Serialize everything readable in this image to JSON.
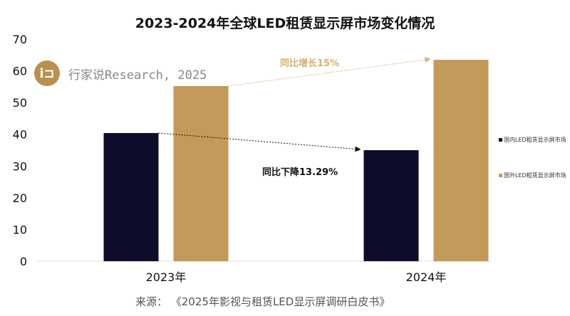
{
  "chart_data": {
    "type": "bar",
    "title": "2023-2024年全球LED租赁显示屏市场变化情况",
    "categories": [
      "2023年",
      "2024年"
    ],
    "series": [
      {
        "name": "国内LED租赁显示屏市场",
        "values": [
          40.4,
          35.0
        ],
        "color": "#0d0d2b"
      },
      {
        "name": "国外LED租赁显示屏市场",
        "values": [
          55.2,
          63.5
        ],
        "color": "#c49a5a"
      }
    ],
    "ylim": [
      0,
      70
    ],
    "yticks": [
      0,
      10,
      20,
      30,
      40,
      50,
      60,
      70
    ],
    "grid": false,
    "legend": "right",
    "annotations": {
      "foreign": "同比增长15%",
      "domestic": "同比下降13.29%"
    }
  },
  "watermark": {
    "logo": "i□",
    "text": "行家说Research, 2025"
  },
  "source": "来源：  《2025年影视与租赁LED显示屏调研白皮书》"
}
